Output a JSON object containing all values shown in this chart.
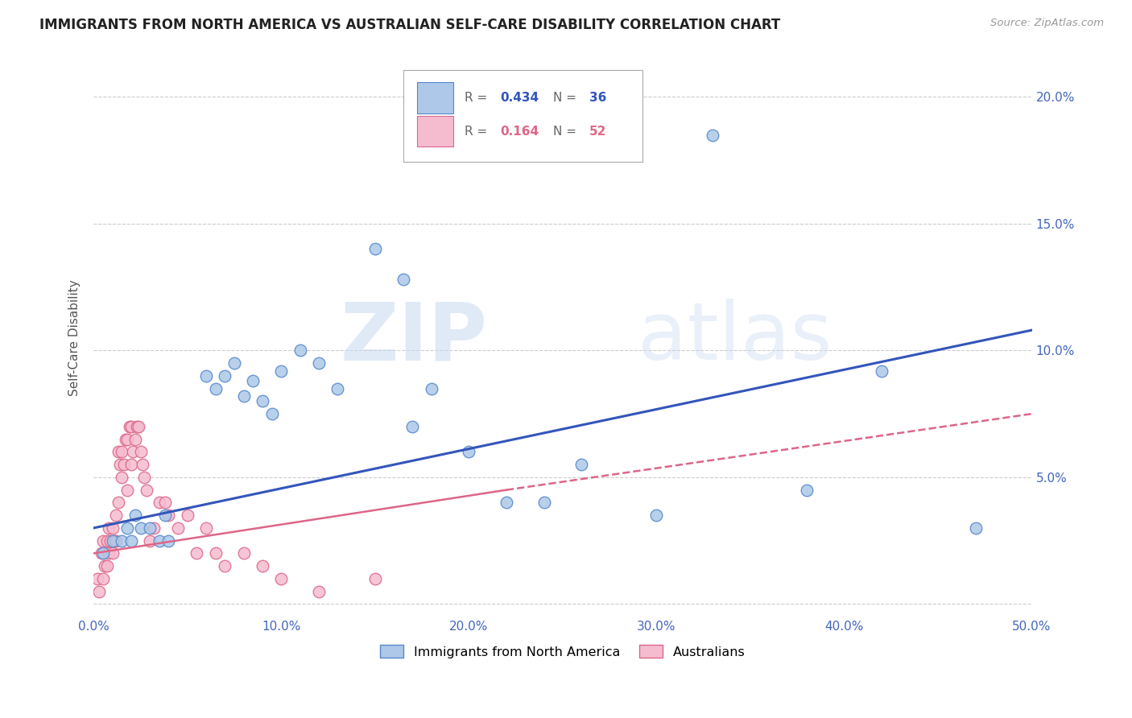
{
  "title": "IMMIGRANTS FROM NORTH AMERICA VS AUSTRALIAN SELF-CARE DISABILITY CORRELATION CHART",
  "source": "Source: ZipAtlas.com",
  "ylabel": "Self-Care Disability",
  "xlim": [
    0.0,
    0.5
  ],
  "ylim": [
    -0.005,
    0.215
  ],
  "yticks": [
    0.0,
    0.05,
    0.1,
    0.15,
    0.2
  ],
  "ytick_labels": [
    "",
    "5.0%",
    "10.0%",
    "15.0%",
    "20.0%"
  ],
  "xticks": [
    0.0,
    0.1,
    0.2,
    0.3,
    0.4,
    0.5
  ],
  "xtick_labels": [
    "0.0%",
    "10.0%",
    "20.0%",
    "30.0%",
    "40.0%",
    "50.0%"
  ],
  "blue_color": "#adc8e8",
  "blue_edge_color": "#5588cc",
  "pink_color": "#f5bcd0",
  "pink_edge_color": "#dd6688",
  "blue_line_color": "#3355bb",
  "pink_line_color": "#dd6688",
  "r_blue": 0.434,
  "n_blue": 36,
  "r_pink": 0.164,
  "n_pink": 52,
  "blue_scatter_x": [
    0.005,
    0.01,
    0.015,
    0.018,
    0.02,
    0.022,
    0.025,
    0.03,
    0.035,
    0.038,
    0.04,
    0.06,
    0.065,
    0.07,
    0.075,
    0.08,
    0.085,
    0.09,
    0.095,
    0.1,
    0.11,
    0.12,
    0.13,
    0.15,
    0.165,
    0.17,
    0.18,
    0.2,
    0.22,
    0.24,
    0.26,
    0.3,
    0.33,
    0.38,
    0.42,
    0.47
  ],
  "blue_scatter_y": [
    0.02,
    0.025,
    0.025,
    0.03,
    0.025,
    0.035,
    0.03,
    0.03,
    0.025,
    0.035,
    0.025,
    0.09,
    0.085,
    0.09,
    0.095,
    0.082,
    0.088,
    0.08,
    0.075,
    0.092,
    0.1,
    0.095,
    0.085,
    0.14,
    0.128,
    0.07,
    0.085,
    0.06,
    0.04,
    0.04,
    0.055,
    0.035,
    0.185,
    0.045,
    0.092,
    0.03
  ],
  "pink_scatter_x": [
    0.002,
    0.003,
    0.004,
    0.005,
    0.005,
    0.006,
    0.007,
    0.007,
    0.008,
    0.008,
    0.009,
    0.01,
    0.01,
    0.011,
    0.012,
    0.012,
    0.013,
    0.013,
    0.014,
    0.015,
    0.015,
    0.016,
    0.017,
    0.018,
    0.018,
    0.019,
    0.02,
    0.02,
    0.021,
    0.022,
    0.023,
    0.024,
    0.025,
    0.026,
    0.027,
    0.028,
    0.03,
    0.032,
    0.035,
    0.038,
    0.04,
    0.045,
    0.05,
    0.055,
    0.06,
    0.065,
    0.07,
    0.08,
    0.09,
    0.1,
    0.12,
    0.15
  ],
  "pink_scatter_y": [
    0.01,
    0.005,
    0.02,
    0.025,
    0.01,
    0.015,
    0.015,
    0.025,
    0.02,
    0.03,
    0.025,
    0.03,
    0.02,
    0.025,
    0.035,
    0.025,
    0.04,
    0.06,
    0.055,
    0.05,
    0.06,
    0.055,
    0.065,
    0.065,
    0.045,
    0.07,
    0.07,
    0.055,
    0.06,
    0.065,
    0.07,
    0.07,
    0.06,
    0.055,
    0.05,
    0.045,
    0.025,
    0.03,
    0.04,
    0.04,
    0.035,
    0.03,
    0.035,
    0.02,
    0.03,
    0.02,
    0.015,
    0.02,
    0.015,
    0.01,
    0.005,
    0.01
  ],
  "legend_label_blue": "Immigrants from North America",
  "legend_label_pink": "Australians",
  "watermark_zip": "ZIP",
  "watermark_atlas": "atlas",
  "background_color": "#ffffff",
  "axis_label_color": "#555555",
  "tick_color": "#4466bb",
  "grid_color": "#cccccc"
}
